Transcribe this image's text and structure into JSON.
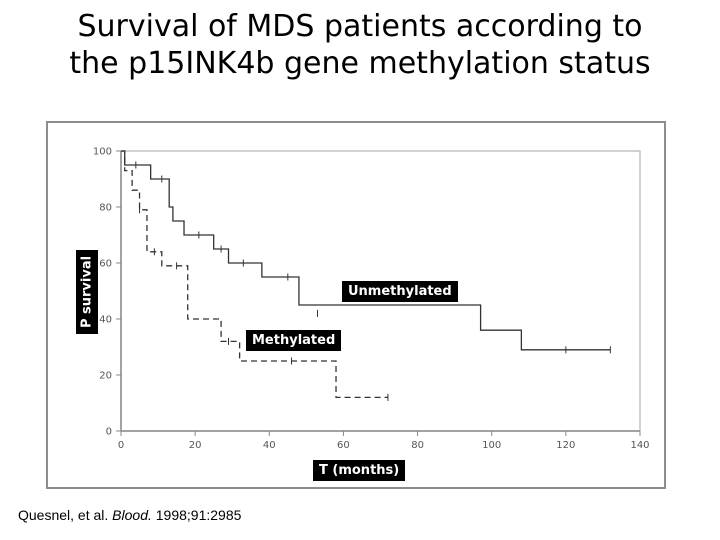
{
  "slide": {
    "title": "Survival of MDS patients according to the p15INK4b gene methylation status"
  },
  "citation": {
    "authors": "Quesnel, et al.",
    "journal": "Blood.",
    "details": " 1998;91:2985"
  },
  "chart_data": {
    "type": "line",
    "subtype": "kaplan-meier step",
    "title": "",
    "xlabel": "T (months)",
    "ylabel": "P survival",
    "xlim": [
      0,
      140
    ],
    "ylim": [
      0,
      100
    ],
    "x_ticks": [
      0,
      20,
      40,
      60,
      80,
      100,
      120,
      140
    ],
    "y_ticks": [
      0,
      20,
      40,
      60,
      80,
      100
    ],
    "x_tick_labels": [
      "0",
      "20",
      "40",
      "60",
      "80",
      "100",
      "120",
      "140"
    ],
    "y_tick_labels": [
      "0",
      "20",
      "40",
      "60",
      "80",
      "100"
    ],
    "grid": false,
    "series": [
      {
        "name": "Unmethylated",
        "style": "solid",
        "color": "#333333",
        "steps": [
          [
            0,
            100
          ],
          [
            1,
            95
          ],
          [
            8,
            90
          ],
          [
            13,
            80
          ],
          [
            14,
            75
          ],
          [
            17,
            70
          ],
          [
            25,
            65
          ],
          [
            29,
            60
          ],
          [
            38,
            55
          ],
          [
            48,
            45
          ],
          [
            97,
            36
          ],
          [
            108,
            29
          ],
          [
            132,
            29
          ]
        ],
        "censored": [
          [
            4,
            95
          ],
          [
            11,
            90
          ],
          [
            21,
            70
          ],
          [
            27,
            65
          ],
          [
            33,
            60
          ],
          [
            45,
            55
          ],
          [
            53,
            42
          ],
          [
            120,
            29
          ],
          [
            132,
            29
          ]
        ]
      },
      {
        "name": "Methylated",
        "style": "dashed",
        "color": "#333333",
        "steps": [
          [
            0,
            100
          ],
          [
            1,
            93
          ],
          [
            3,
            86
          ],
          [
            5,
            79
          ],
          [
            7,
            64
          ],
          [
            11,
            59
          ],
          [
            18,
            40
          ],
          [
            27,
            32
          ],
          [
            32,
            25
          ],
          [
            58,
            12
          ],
          [
            72,
            12
          ]
        ],
        "censored": [
          [
            5,
            79
          ],
          [
            9,
            64
          ],
          [
            15,
            59
          ],
          [
            29,
            32
          ],
          [
            46,
            25
          ],
          [
            72,
            12
          ]
        ]
      }
    ],
    "annotations": [
      {
        "text": "Unmethylated",
        "target_x": 76,
        "target_y": 49
      },
      {
        "text": "Methylated",
        "target_x": 40,
        "target_y": 29
      }
    ]
  }
}
